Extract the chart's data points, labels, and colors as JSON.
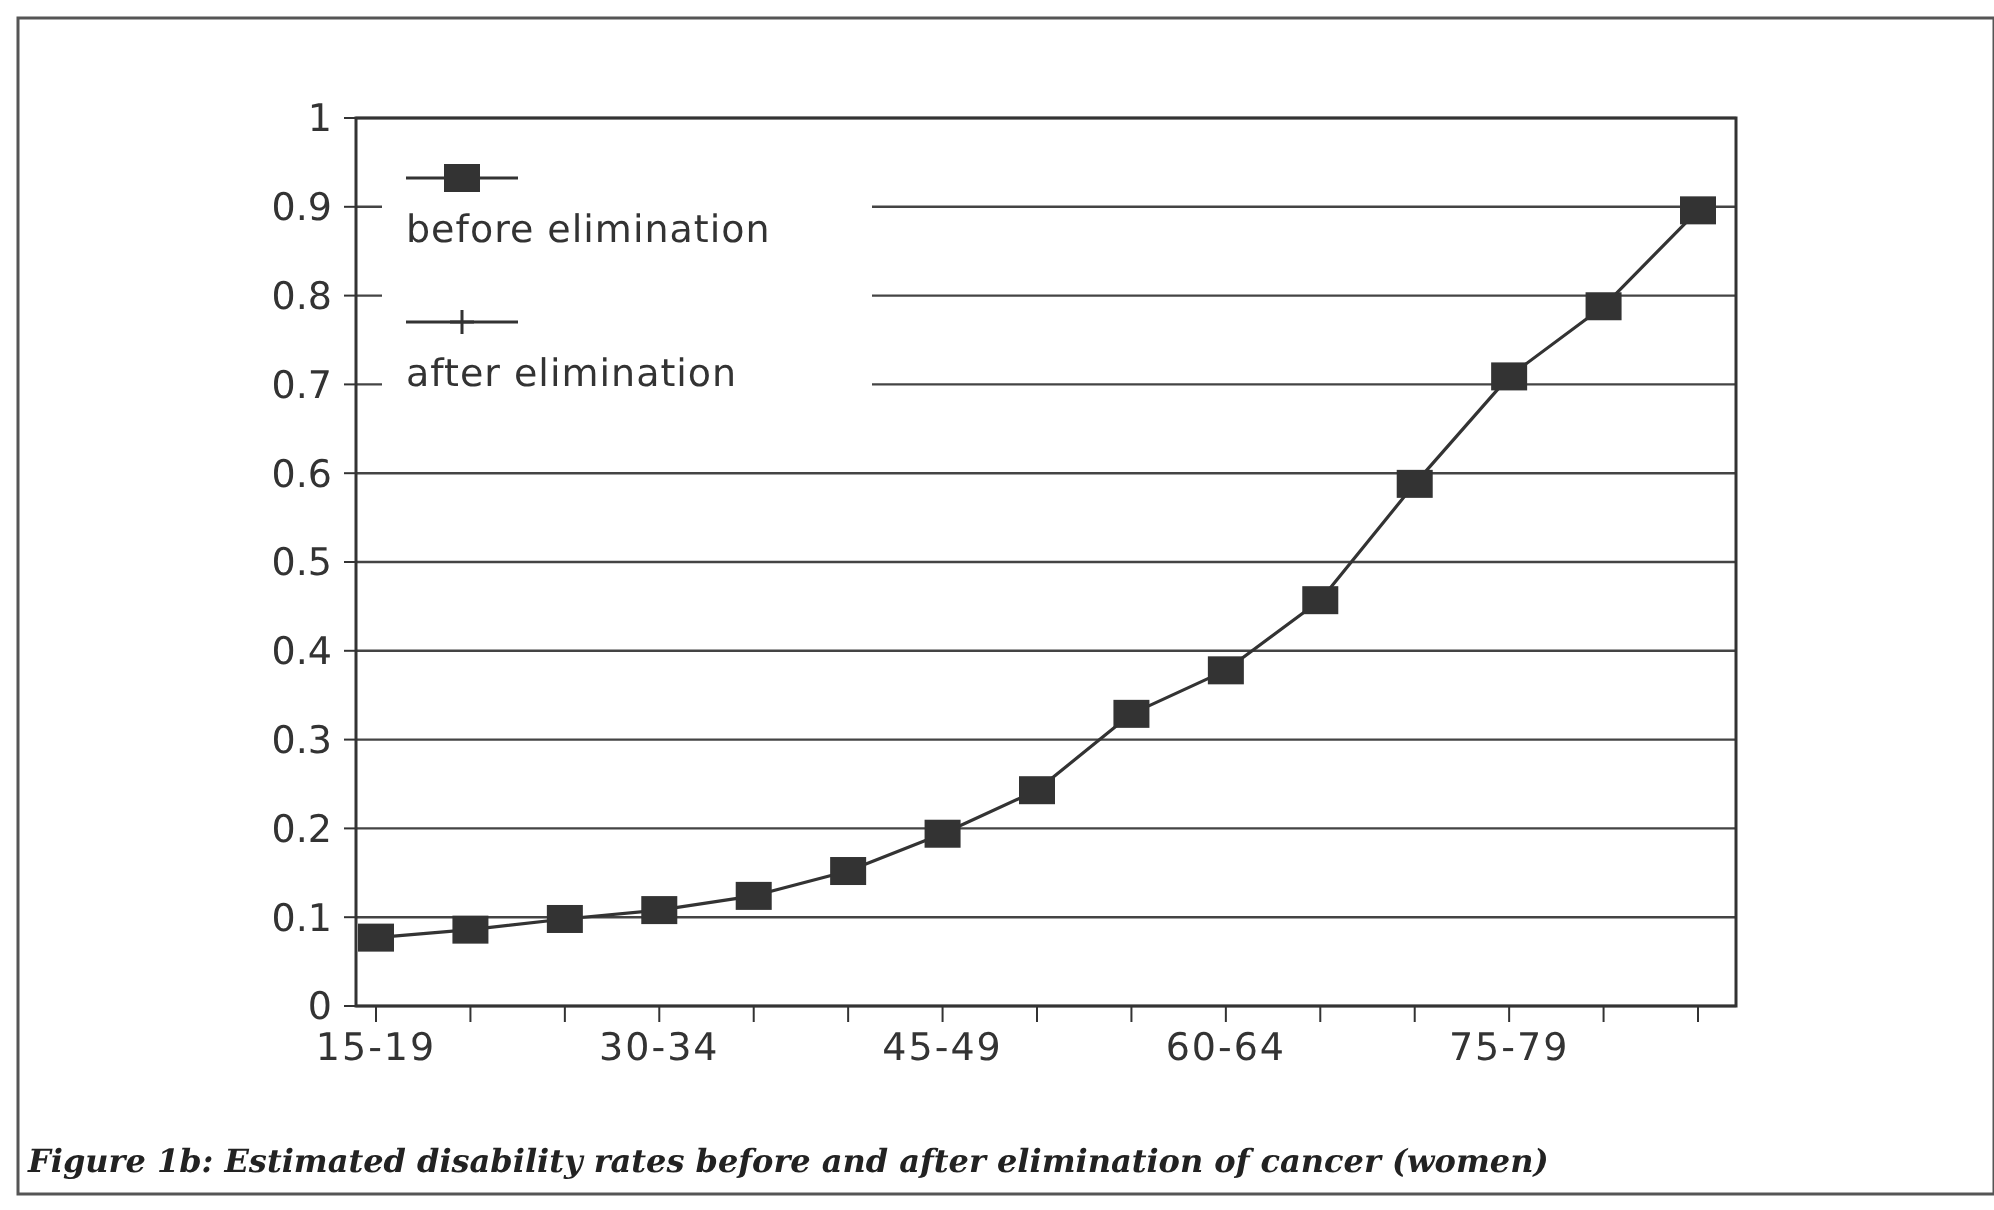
{
  "chart_data": {
    "type": "line",
    "title": "Figure 1b: Estimated disability rates before and after elimination of cancer (women)",
    "categories": [
      "15-19",
      null,
      null,
      "30-34",
      null,
      null,
      "45-49",
      null,
      null,
      "60-64",
      null,
      null,
      "75-79",
      null,
      null
    ],
    "series": [
      {
        "name": "before elimination",
        "color": "#333333",
        "marker": "square",
        "values": [
          0.077,
          0.086,
          0.098,
          0.108,
          0.124,
          0.152,
          0.194,
          0.243,
          0.329,
          0.378,
          0.457,
          0.588,
          0.709,
          0.788,
          0.896
        ]
      },
      {
        "name": "after elimination",
        "color": "#333333",
        "marker": "cross",
        "values": [
          null,
          null,
          null,
          null,
          null,
          null,
          null,
          null,
          null,
          null,
          null,
          null,
          null,
          null,
          null
        ]
      }
    ],
    "ylim": [
      0,
      1
    ],
    "yticks": [
      0,
      0.1,
      0.2,
      0.3,
      0.4,
      0.5,
      0.6,
      0.7,
      0.8,
      0.9,
      1
    ],
    "grid": "y",
    "legend": "top left",
    "line_style": "solid"
  }
}
